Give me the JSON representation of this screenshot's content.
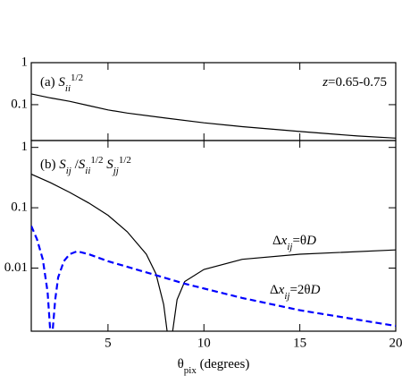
{
  "chart_data": [
    {
      "type": "line",
      "ylog": true,
      "xlim": [
        1,
        20
      ],
      "ylim": [
        0.014,
        1
      ],
      "yticks": [
        1,
        0.1
      ],
      "xticks": [
        5,
        10,
        15,
        20
      ],
      "annotations": [
        {
          "parts": [
            {
              "text": "(a) "
            },
            {
              "text": "S",
              "style": "italic"
            },
            {
              "text": "ii",
              "style": "italic",
              "shift": "sub"
            },
            {
              "text": "1/2",
              "shift": "super"
            }
          ]
        },
        {
          "parts": [
            {
              "text": "z",
              "style": "italic"
            },
            {
              "text": "=0.65-0.75"
            }
          ]
        }
      ],
      "x": [
        1,
        2,
        3,
        4,
        5,
        6,
        8,
        10,
        12,
        15,
        18,
        20
      ],
      "series": [
        {
          "color": "#000000",
          "dash": false,
          "values": [
            0.18,
            0.145,
            0.12,
            0.095,
            0.075,
            0.063,
            0.048,
            0.037,
            0.03,
            0.023,
            0.018,
            0.016
          ]
        }
      ]
    },
    {
      "type": "line",
      "ylog": true,
      "xlim": [
        1,
        20
      ],
      "ylim": [
        0.0009,
        1.3
      ],
      "yticks": [
        1,
        0.1,
        0.01
      ],
      "xticks": [
        5,
        10,
        15,
        20
      ],
      "xlabel": {
        "parts": [
          {
            "text": "θ"
          },
          {
            "text": "pix",
            "shift": "sub"
          },
          {
            "text": " (degrees)"
          }
        ]
      },
      "annotations": [
        {
          "parts": [
            {
              "text": "(b) "
            },
            {
              "text": "S",
              "style": "italic"
            },
            {
              "text": "ij",
              "style": "italic",
              "shift": "sub"
            },
            {
              "text": " /"
            },
            {
              "text": "S",
              "style": "italic"
            },
            {
              "text": "ii",
              "style": "italic",
              "shift": "sub"
            },
            {
              "text": "1/2",
              "shift": "super"
            },
            {
              "text": " S",
              "style": "italic"
            },
            {
              "text": "jj",
              "style": "italic",
              "shift": "sub"
            },
            {
              "text": "1/2",
              "shift": "super"
            }
          ]
        },
        {
          "parts": [
            {
              "text": "Δ"
            },
            {
              "text": "x",
              "style": "italic"
            },
            {
              "text": "ij",
              "style": "italic",
              "shift": "sub"
            },
            {
              "text": "=θ"
            },
            {
              "text": "D",
              "style": "italic"
            }
          ]
        },
        {
          "parts": [
            {
              "text": "Δ"
            },
            {
              "text": "x",
              "style": "italic"
            },
            {
              "text": "ij",
              "style": "italic",
              "shift": "sub"
            },
            {
              "text": "=2θ"
            },
            {
              "text": "D",
              "style": "italic"
            }
          ],
          "color": "#0000ff"
        }
      ],
      "series": [
        {
          "color": "#000000",
          "dash": false,
          "x": [
            1,
            2,
            3,
            4,
            5,
            6,
            7,
            7.5,
            7.9,
            8.1,
            8.35,
            8.6,
            9,
            10,
            12,
            15,
            20
          ],
          "values": [
            0.36,
            0.26,
            0.18,
            0.12,
            0.075,
            0.04,
            0.017,
            0.008,
            0.0025,
            0.0008,
            0.0008,
            0.003,
            0.006,
            0.0095,
            0.014,
            0.017,
            0.02
          ]
        },
        {
          "color": "#0000ff",
          "dash": true,
          "x": [
            1,
            1.3,
            1.6,
            1.85,
            2.0,
            2.1,
            2.25,
            2.4,
            2.7,
            3.0,
            3.4,
            4,
            5,
            7,
            9,
            12,
            15,
            20
          ],
          "values": [
            0.05,
            0.03,
            0.014,
            0.004,
            0.0008,
            0.0008,
            0.003,
            0.007,
            0.013,
            0.017,
            0.019,
            0.017,
            0.013,
            0.0085,
            0.0055,
            0.0032,
            0.002,
            0.0011
          ]
        }
      ]
    }
  ]
}
